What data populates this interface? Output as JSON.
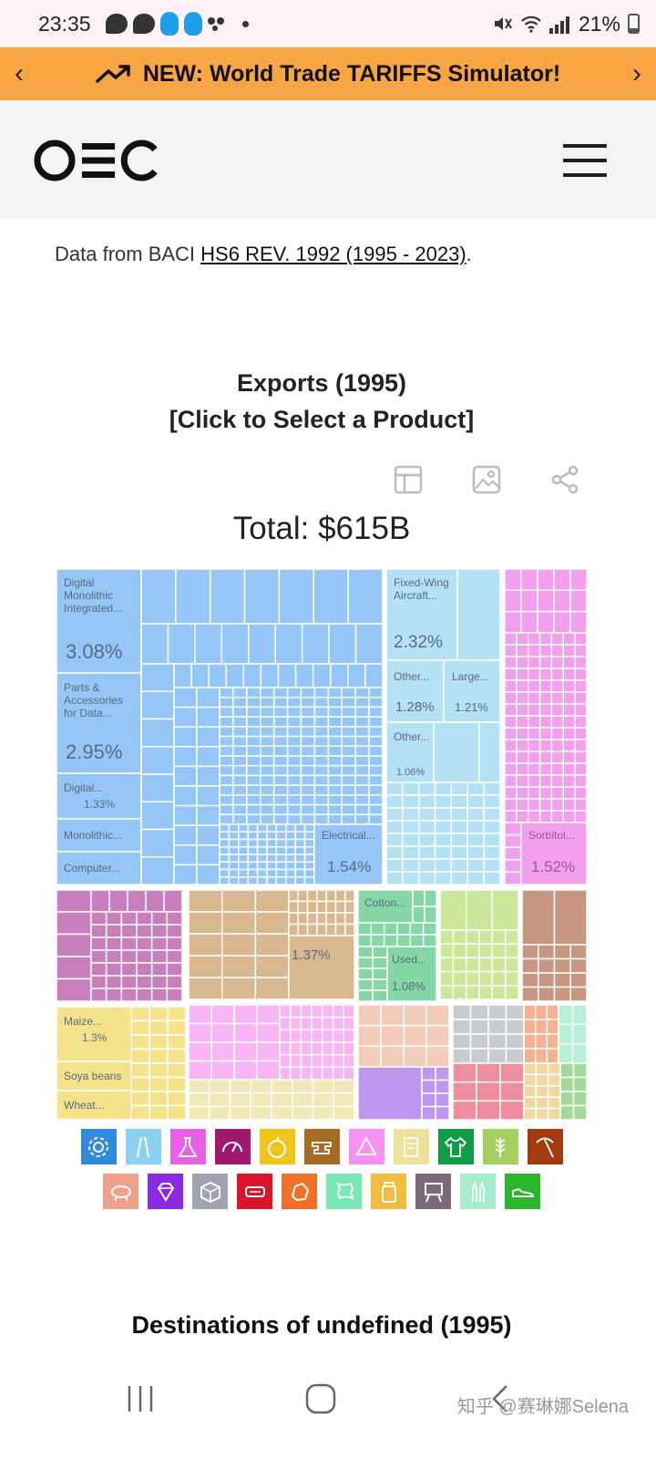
{
  "status_bar": {
    "time": "23:35",
    "battery": "21%"
  },
  "banner": {
    "text": "NEW: World Trade TARIFFS Simulator!"
  },
  "header": {
    "logo": "OEC"
  },
  "data_source": {
    "prefix": "Data from BACI ",
    "link": "HS6 REV. 1992 (1995 - 2023)",
    "suffix": "."
  },
  "chart": {
    "title_line1": "Exports (1995)",
    "title_line2": "[Click to Select a Product]",
    "total": "Total: $615B"
  },
  "chart_data": {
    "type": "treemap",
    "items": [
      {
        "label": "Digital Monolithic Integrated...",
        "value": "3.08%",
        "color": "#95c6f7"
      },
      {
        "label": "Parts & Accessories for Data...",
        "value": "2.95%",
        "color": "#95c6f7"
      },
      {
        "label": "Digital...",
        "value": "1.33%",
        "color": "#95c6f7"
      },
      {
        "label": "Monolithic...",
        "value": "",
        "color": "#95c6f7"
      },
      {
        "label": "Computer...",
        "value": "",
        "color": "#95c6f7"
      },
      {
        "label": "Electrical...",
        "value": "1.54%",
        "color": "#95c6f7"
      },
      {
        "label": "Fixed-Wing Aircraft...",
        "value": "2.32%",
        "color": "#b5e1f4"
      },
      {
        "label": "Other...",
        "value": "1.28%",
        "color": "#b5e1f4"
      },
      {
        "label": "Large...",
        "value": "1.21%",
        "color": "#b5e1f4"
      },
      {
        "label": "Other...",
        "value": "1.06%",
        "color": "#b5e1f4"
      },
      {
        "label": "Sorbitol...",
        "value": "1.52%",
        "color": "#f39ff0"
      },
      {
        "label": "",
        "value": "1.37%",
        "color": "#d9b88f"
      },
      {
        "label": "Cotton...",
        "value": "",
        "color": "#85d8a5"
      },
      {
        "label": "Used...",
        "value": "1.08%",
        "color": "#85d8a5"
      },
      {
        "label": "Maize...",
        "value": "1.3%",
        "color": "#f5e38b"
      },
      {
        "label": "Soya beans",
        "value": "",
        "color": "#f5e38b"
      },
      {
        "label": "Wheat...",
        "value": "",
        "color": "#f5e38b"
      }
    ]
  },
  "legend": {
    "row1": [
      {
        "icon": "gear-icon",
        "color": "#2f8ae0"
      },
      {
        "icon": "road-icon",
        "color": "#8cd0f0"
      },
      {
        "icon": "flask-icon",
        "color": "#e960e8"
      },
      {
        "icon": "gauge-icon",
        "color": "#a0196e"
      },
      {
        "icon": "fruit-icon",
        "color": "#f0c419"
      },
      {
        "icon": "anvil-icon",
        "color": "#a36b23"
      },
      {
        "icon": "recycle-icon",
        "color": "#f690f2"
      },
      {
        "icon": "scroll-icon",
        "color": "#efe19a"
      },
      {
        "icon": "shirt-icon",
        "color": "#0e9c44"
      },
      {
        "icon": "wheat-icon",
        "color": "#a4d05f"
      },
      {
        "icon": "pickaxe-icon",
        "color": "#a33a10"
      }
    ],
    "row2": [
      {
        "icon": "pig-icon",
        "color": "#f0a18a"
      },
      {
        "icon": "diamond-icon",
        "color": "#8a2be2"
      },
      {
        "icon": "box-icon",
        "color": "#a1a4b0"
      },
      {
        "icon": "tag-icon",
        "color": "#d8152a"
      },
      {
        "icon": "stone-icon",
        "color": "#ef6f28"
      },
      {
        "icon": "leather-icon",
        "color": "#7ae8b5"
      },
      {
        "icon": "jar-icon",
        "color": "#f1bc41"
      },
      {
        "icon": "easel-icon",
        "color": "#7c6a7a"
      },
      {
        "icon": "bullets-icon",
        "color": "#a8ecd0"
      },
      {
        "icon": "shoe-icon",
        "color": "#2bb52b"
      }
    ]
  },
  "destinations": {
    "title": "Destinations of undefined (1995)"
  },
  "watermark": "知乎 @赛琳娜Selena"
}
